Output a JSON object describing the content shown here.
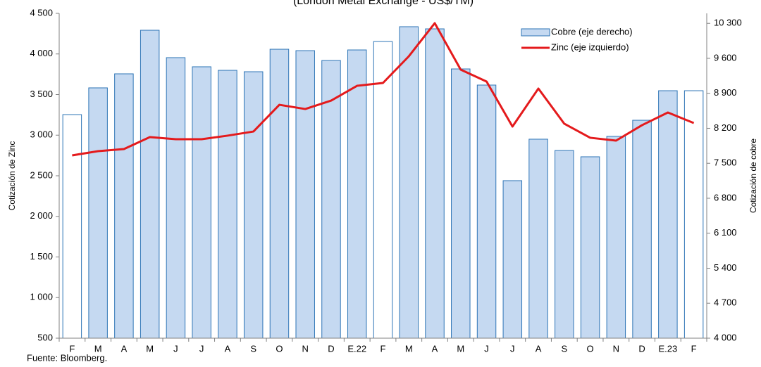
{
  "chart_data": {
    "type": "bar_line",
    "title": "(London Metal Exchange - US$/TM)",
    "ylabel": "Cotización de Zinc",
    "y2label": "Cotización de cobre",
    "source": "Fuente: Bloomberg.",
    "categories": [
      "F",
      "M",
      "A",
      "M",
      "J",
      "J",
      "A",
      "S",
      "O",
      "N",
      "D",
      "E.22",
      "F",
      "M",
      "A",
      "M",
      "J",
      "J",
      "A",
      "S",
      "O",
      "N",
      "D",
      "E.23",
      "F"
    ],
    "series": [
      {
        "name": "Cobre (eje derecho)",
        "kind": "bar",
        "axis": "y2",
        "color": "#c5d9f1",
        "edge_color": "#2e75b6",
        "bar_colors": [
          "#ffffff",
          "#c5d9f1",
          "#c5d9f1",
          "#c5d9f1",
          "#c5d9f1",
          "#c5d9f1",
          "#c5d9f1",
          "#c5d9f1",
          "#c5d9f1",
          "#c5d9f1",
          "#c5d9f1",
          "#c5d9f1",
          "#ffffff",
          "#c5d9f1",
          "#c5d9f1",
          "#c5d9f1",
          "#c5d9f1",
          "#c5d9f1",
          "#c5d9f1",
          "#c5d9f1",
          "#c5d9f1",
          "#c5d9f1",
          "#c5d9f1",
          "#c5d9f1",
          "#ffffff"
        ],
        "values": [
          8474,
          9009,
          9290,
          10162,
          9614,
          9431,
          9360,
          9332,
          9782,
          9754,
          9557,
          9768,
          9937,
          10233,
          10190,
          9388,
          9065,
          7152,
          7982,
          7756,
          7630,
          8038,
          8361,
          8952,
          8952
        ]
      },
      {
        "name": "Zinc (eje izquierdo)",
        "kind": "line",
        "axis": "y",
        "color": "#e41a1c",
        "values": [
          2751,
          2803,
          2829,
          2976,
          2950,
          2950,
          2994,
          3045,
          3374,
          3322,
          3426,
          3608,
          3643,
          3972,
          4379,
          3807,
          3660,
          3106,
          3574,
          3141,
          2968,
          2933,
          3123,
          3279,
          3149
        ]
      }
    ],
    "ylim": [
      500,
      4500
    ],
    "yticks": [
      {
        "value": 500,
        "label": "500"
      },
      {
        "value": 1000,
        "label": "1 000"
      },
      {
        "value": 1500,
        "label": "1 500"
      },
      {
        "value": 2000,
        "label": "2 000"
      },
      {
        "value": 2500,
        "label": "2 500"
      },
      {
        "value": 3000,
        "label": "3 000"
      },
      {
        "value": 3500,
        "label": "3 500"
      },
      {
        "value": 4000,
        "label": "4 000"
      },
      {
        "value": 4500,
        "label": "4 500"
      }
    ],
    "y2lim": [
      4000,
      10500
    ],
    "y2ticks": [
      {
        "value": 4000,
        "label": "4 000"
      },
      {
        "value": 4700,
        "label": "4 700"
      },
      {
        "value": 5400,
        "label": "5 400"
      },
      {
        "value": 6100,
        "label": "6 100"
      },
      {
        "value": 6800,
        "label": "6 800"
      },
      {
        "value": 7500,
        "label": "7 500"
      },
      {
        "value": 8200,
        "label": "8 200"
      },
      {
        "value": 8900,
        "label": "8 900"
      },
      {
        "value": 9600,
        "label": "9 600"
      },
      {
        "value": 10300,
        "label": "10 300"
      }
    ],
    "grid": false,
    "legend": "upper right"
  }
}
